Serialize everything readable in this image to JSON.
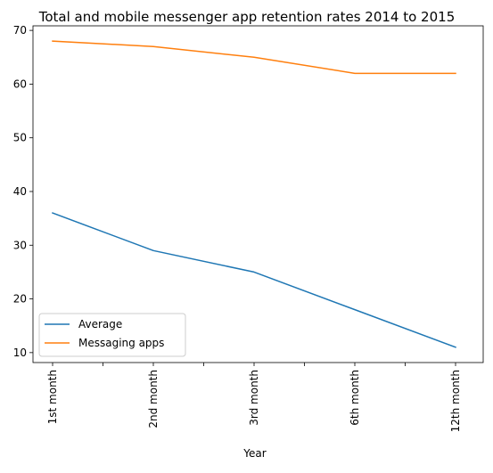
{
  "chart_data": {
    "type": "line",
    "title": "Total and mobile messenger app retention rates 2014 to 2015",
    "xlabel": "Year",
    "ylabel": "",
    "categories": [
      "1st month",
      "2nd month",
      "3rd month",
      "6th month",
      "12th month"
    ],
    "yticks": [
      "10",
      "20",
      "30",
      "40",
      "50",
      "60",
      "70"
    ],
    "ylim": [
      8.15,
      70.85
    ],
    "series": [
      {
        "name": "Average",
        "values": [
          36,
          29,
          25,
          18,
          11
        ],
        "color": "#1f77b4"
      },
      {
        "name": "Messaging apps",
        "values": [
          68,
          67,
          65,
          62,
          62
        ],
        "color": "#ff7f0e"
      }
    ],
    "grid": false,
    "legend_position": "lower-left"
  }
}
